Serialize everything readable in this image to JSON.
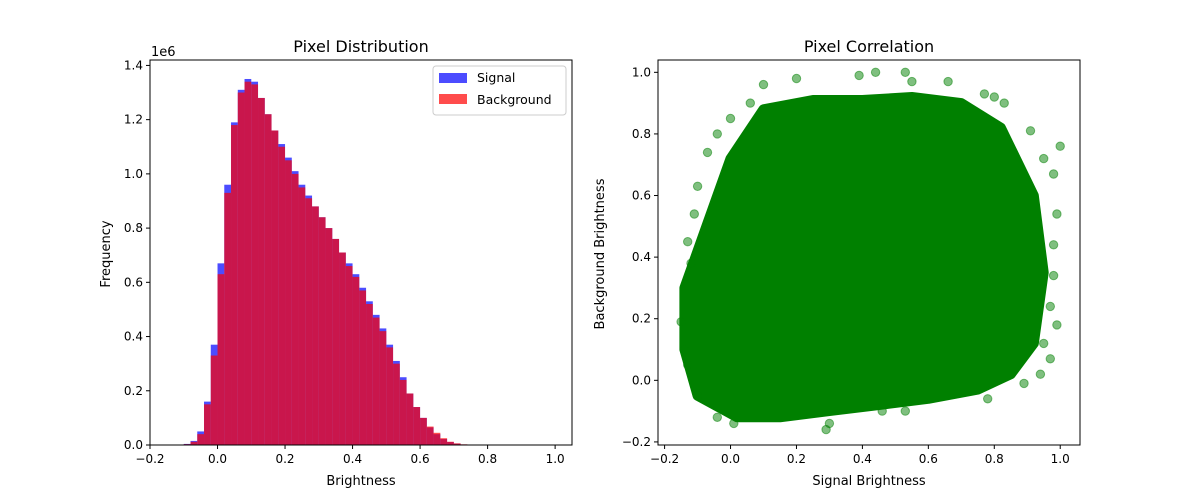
{
  "figure": {
    "background": "#ffffff"
  },
  "chart_data": [
    {
      "type": "bar",
      "subtype": "histogram",
      "title": "Pixel Distribution",
      "xlabel": "Brightness",
      "ylabel": "Frequency",
      "y_offset_label": "1e6",
      "xlim": [
        -0.2,
        1.05
      ],
      "ylim": [
        0,
        1420000
      ],
      "x_ticks": [
        -0.2,
        0.0,
        0.2,
        0.4,
        0.6,
        0.8,
        1.0
      ],
      "x_tick_labels": [
        "−0.2",
        "0.0",
        "0.2",
        "0.4",
        "0.6",
        "0.8",
        "1.0"
      ],
      "y_ticks": [
        0,
        200000,
        400000,
        600000,
        800000,
        1000000,
        1200000,
        1400000
      ],
      "y_tick_labels": [
        "0.0",
        "0.2",
        "0.4",
        "0.6",
        "0.8",
        "1.0",
        "1.2",
        "1.4"
      ],
      "legend": {
        "location": "top-right"
      },
      "bin_start": -0.12,
      "bin_width": 0.02,
      "series": [
        {
          "name": "Signal",
          "color": "#0000ff",
          "alpha": 0.7,
          "values": [
            1000,
            4000,
            15000,
            50000,
            160000,
            370000,
            670000,
            960000,
            1190000,
            1310000,
            1350000,
            1340000,
            1280000,
            1220000,
            1160000,
            1110000,
            1060000,
            1010000,
            960000,
            920000,
            880000,
            840000,
            800000,
            760000,
            710000,
            670000,
            630000,
            580000,
            530000,
            480000,
            430000,
            370000,
            310000,
            250000,
            190000,
            140000,
            100000,
            65000,
            40000,
            22000,
            11000,
            5000,
            2000,
            1000,
            400,
            100
          ]
        },
        {
          "name": "Background",
          "color": "#ff0000",
          "alpha": 0.7,
          "values": [
            1000,
            3000,
            12000,
            40000,
            150000,
            330000,
            630000,
            930000,
            1180000,
            1300000,
            1340000,
            1330000,
            1280000,
            1220000,
            1160000,
            1100000,
            1050000,
            1000000,
            950000,
            910000,
            880000,
            840000,
            800000,
            760000,
            710000,
            660000,
            620000,
            570000,
            520000,
            470000,
            420000,
            360000,
            300000,
            240000,
            190000,
            140000,
            100000,
            68000,
            45000,
            25000,
            12000,
            6000,
            2500,
            1000,
            400,
            100
          ]
        }
      ]
    },
    {
      "type": "scatter",
      "title": "Pixel Correlation",
      "xlabel": "Signal Brightness",
      "ylabel": "Background Brightness",
      "xlim": [
        -0.22,
        1.06
      ],
      "ylim": [
        -0.21,
        1.04
      ],
      "x_ticks": [
        -0.2,
        0.0,
        0.2,
        0.4,
        0.6,
        0.8,
        1.0
      ],
      "x_tick_labels": [
        "−0.2",
        "0.0",
        "0.2",
        "0.4",
        "0.6",
        "0.8",
        "1.0"
      ],
      "y_ticks": [
        -0.2,
        0.0,
        0.2,
        0.4,
        0.6,
        0.8,
        1.0
      ],
      "y_tick_labels": [
        "−0.2",
        "0.0",
        "0.2",
        "0.4",
        "0.6",
        "0.8",
        "1.0"
      ],
      "point_color": "#008000",
      "point_alpha": 0.5,
      "dense_region": {
        "x": [
          -0.14,
          0.0,
          0.1,
          0.25,
          0.4,
          0.55,
          0.7,
          0.82,
          0.92,
          0.95,
          0.92,
          0.85,
          0.75,
          0.6,
          0.45,
          0.3,
          0.15,
          0.02,
          -0.1,
          -0.14
        ],
        "y": [
          0.3,
          0.72,
          0.88,
          0.91,
          0.91,
          0.92,
          0.9,
          0.82,
          0.6,
          0.35,
          0.12,
          0.02,
          -0.03,
          -0.06,
          -0.08,
          -0.1,
          -0.12,
          -0.12,
          -0.05,
          0.1
        ]
      },
      "points": [
        {
          "x": 0.44,
          "y": 1.0
        },
        {
          "x": 0.53,
          "y": 1.0
        },
        {
          "x": 0.39,
          "y": 0.99
        },
        {
          "x": 0.2,
          "y": 0.98
        },
        {
          "x": 0.55,
          "y": 0.97
        },
        {
          "x": 0.66,
          "y": 0.97
        },
        {
          "x": 0.1,
          "y": 0.96
        },
        {
          "x": 0.77,
          "y": 0.93
        },
        {
          "x": 0.8,
          "y": 0.92
        },
        {
          "x": 0.06,
          "y": 0.9
        },
        {
          "x": 0.83,
          "y": 0.9
        },
        {
          "x": 0.0,
          "y": 0.85
        },
        {
          "x": -0.04,
          "y": 0.8
        },
        {
          "x": 0.91,
          "y": 0.81
        },
        {
          "x": -0.07,
          "y": 0.74
        },
        {
          "x": 0.95,
          "y": 0.72
        },
        {
          "x": -0.1,
          "y": 0.63
        },
        {
          "x": 0.98,
          "y": 0.67
        },
        {
          "x": 1.0,
          "y": 0.76
        },
        {
          "x": -0.11,
          "y": 0.54
        },
        {
          "x": 0.99,
          "y": 0.54
        },
        {
          "x": -0.13,
          "y": 0.45
        },
        {
          "x": 0.98,
          "y": 0.44
        },
        {
          "x": -0.12,
          "y": 0.38
        },
        {
          "x": 0.98,
          "y": 0.34
        },
        {
          "x": -0.15,
          "y": 0.19
        },
        {
          "x": 0.97,
          "y": 0.24
        },
        {
          "x": 0.99,
          "y": 0.18
        },
        {
          "x": -0.14,
          "y": 0.1
        },
        {
          "x": 0.95,
          "y": 0.12
        },
        {
          "x": 0.97,
          "y": 0.07
        },
        {
          "x": -0.13,
          "y": 0.05
        },
        {
          "x": 0.94,
          "y": 0.02
        },
        {
          "x": -0.1,
          "y": -0.05
        },
        {
          "x": 0.89,
          "y": -0.01
        },
        {
          "x": 0.78,
          "y": -0.06
        },
        {
          "x": -0.04,
          "y": -0.12
        },
        {
          "x": 0.53,
          "y": -0.1
        },
        {
          "x": 0.46,
          "y": -0.1
        },
        {
          "x": 0.29,
          "y": -0.16
        },
        {
          "x": 0.3,
          "y": -0.14
        },
        {
          "x": 0.01,
          "y": -0.14
        }
      ]
    }
  ]
}
